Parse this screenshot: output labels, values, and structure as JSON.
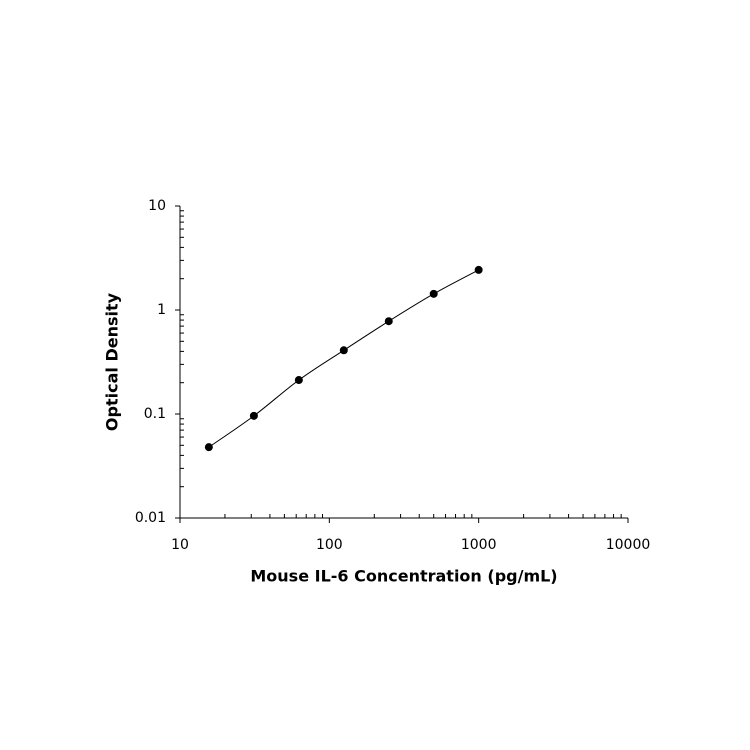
{
  "chart_data": {
    "type": "scatter",
    "x_label": "Mouse IL-6 Concentration (pg/mL)",
    "y_label": "Optical Density",
    "x": [
      15.6,
      31.25,
      62.5,
      125,
      250,
      500,
      1000
    ],
    "values": [
      0.048,
      0.096,
      0.212,
      0.41,
      0.78,
      1.43,
      2.43
    ],
    "color": "#000000",
    "fit_line": true,
    "log_x": true,
    "log_y": true,
    "xlim": [
      10,
      10000
    ],
    "xticks": [
      10,
      100,
      1000,
      10000
    ],
    "ylim": [
      0.01,
      10
    ],
    "yticks": [
      0.01,
      0.1,
      1,
      10
    ]
  }
}
